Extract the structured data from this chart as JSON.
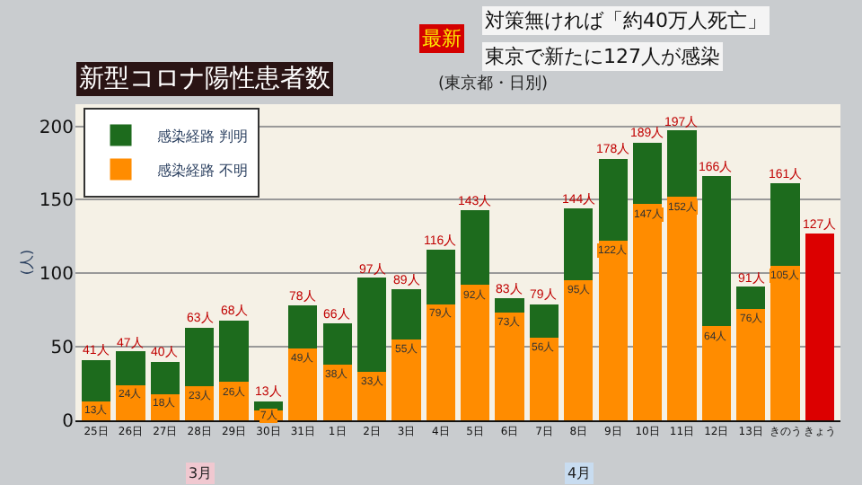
{
  "chart_data": {
    "type": "bar",
    "title": "新型コロナ陽性患者数",
    "subtitle": "(東京都・日別)",
    "ylabel": "(人)",
    "categories": [
      "25日",
      "26日",
      "27日",
      "28日",
      "29日",
      "30日",
      "31日",
      "1日",
      "2日",
      "3日",
      "4日",
      "5日",
      "6日",
      "7日",
      "8日",
      "9日",
      "10日",
      "11日",
      "12日",
      "13日",
      "きのう",
      "きょう"
    ],
    "stacked": true,
    "series": [
      {
        "name": "感染経路 不明",
        "color": "#ff8c00",
        "values": [
          13,
          24,
          18,
          23,
          26,
          7,
          49,
          38,
          33,
          55,
          79,
          92,
          73,
          56,
          95,
          122,
          147,
          152,
          64,
          76,
          105,
          null
        ],
        "value_labels": [
          "13人",
          "24人",
          "18人",
          "23人",
          "26人",
          "7人",
          "49人",
          "38人",
          "33人",
          "55人",
          "79人",
          "92人",
          "73人",
          "56人",
          "95人",
          "122人",
          "147人",
          "152人",
          "64人",
          "76人",
          "105人",
          null
        ]
      },
      {
        "name": "感染経路 判明",
        "color": "#1d6b1d",
        "values": [
          28,
          23,
          22,
          40,
          42,
          6,
          29,
          28,
          64,
          34,
          37,
          51,
          10,
          23,
          49,
          56,
          42,
          45,
          102,
          15,
          56,
          null
        ]
      },
      {
        "color": "#dc0000",
        "values": [
          null,
          null,
          null,
          null,
          null,
          null,
          null,
          null,
          null,
          null,
          null,
          null,
          null,
          null,
          null,
          null,
          null,
          null,
          null,
          null,
          null,
          127
        ]
      }
    ],
    "totals": [
      "41人",
      "47人",
      "40人",
      "63人",
      "68人",
      "13人",
      "78人",
      "66人",
      "97人",
      "89人",
      "116人",
      "143人",
      "83人",
      "79人",
      "144人",
      "178人",
      "189人",
      "197人",
      "166人",
      "91人",
      "161人",
      "127人"
    ],
    "ylim": [
      0,
      215
    ],
    "yticks": [
      0,
      50,
      100,
      150,
      200
    ],
    "grid": "y",
    "legend": "top left",
    "annotations": [
      "最新",
      "対策無ければ「約40万人死亡」",
      "東京で新たに127人が感染",
      "3月",
      "4月"
    ]
  }
}
